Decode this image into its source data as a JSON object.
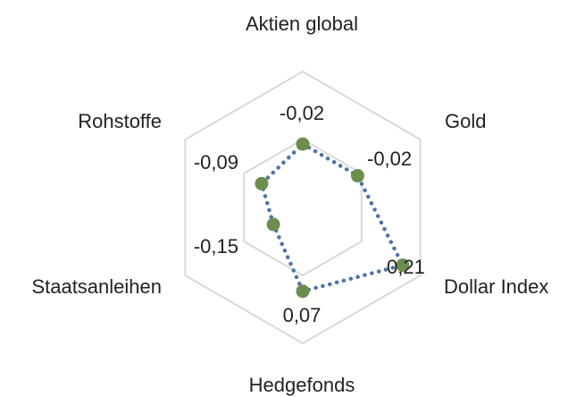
{
  "chart_data": {
    "type": "radar",
    "categories": [
      "Aktien global",
      "Gold",
      "Dollar Index",
      "Hedgefonds",
      "Staatsanleihen",
      "Rohstoffe"
    ],
    "series": [
      {
        "values": [
          -0.02,
          -0.02,
          0.21,
          0.07,
          -0.15,
          -0.09
        ],
        "value_labels": [
          "-0,02",
          "-0,02",
          "0,21",
          "0,07",
          "-0,15",
          "-0,09"
        ]
      }
    ],
    "rlim": [
      -0.3,
      0.3
    ],
    "rings": [
      -0.3,
      0.0,
      0.3
    ],
    "grid": true,
    "legend": "none",
    "colors": {
      "line": "#4f74a6",
      "marker": "#6b8e4e",
      "grid": "#d9d9d9",
      "text": "#222222"
    }
  }
}
